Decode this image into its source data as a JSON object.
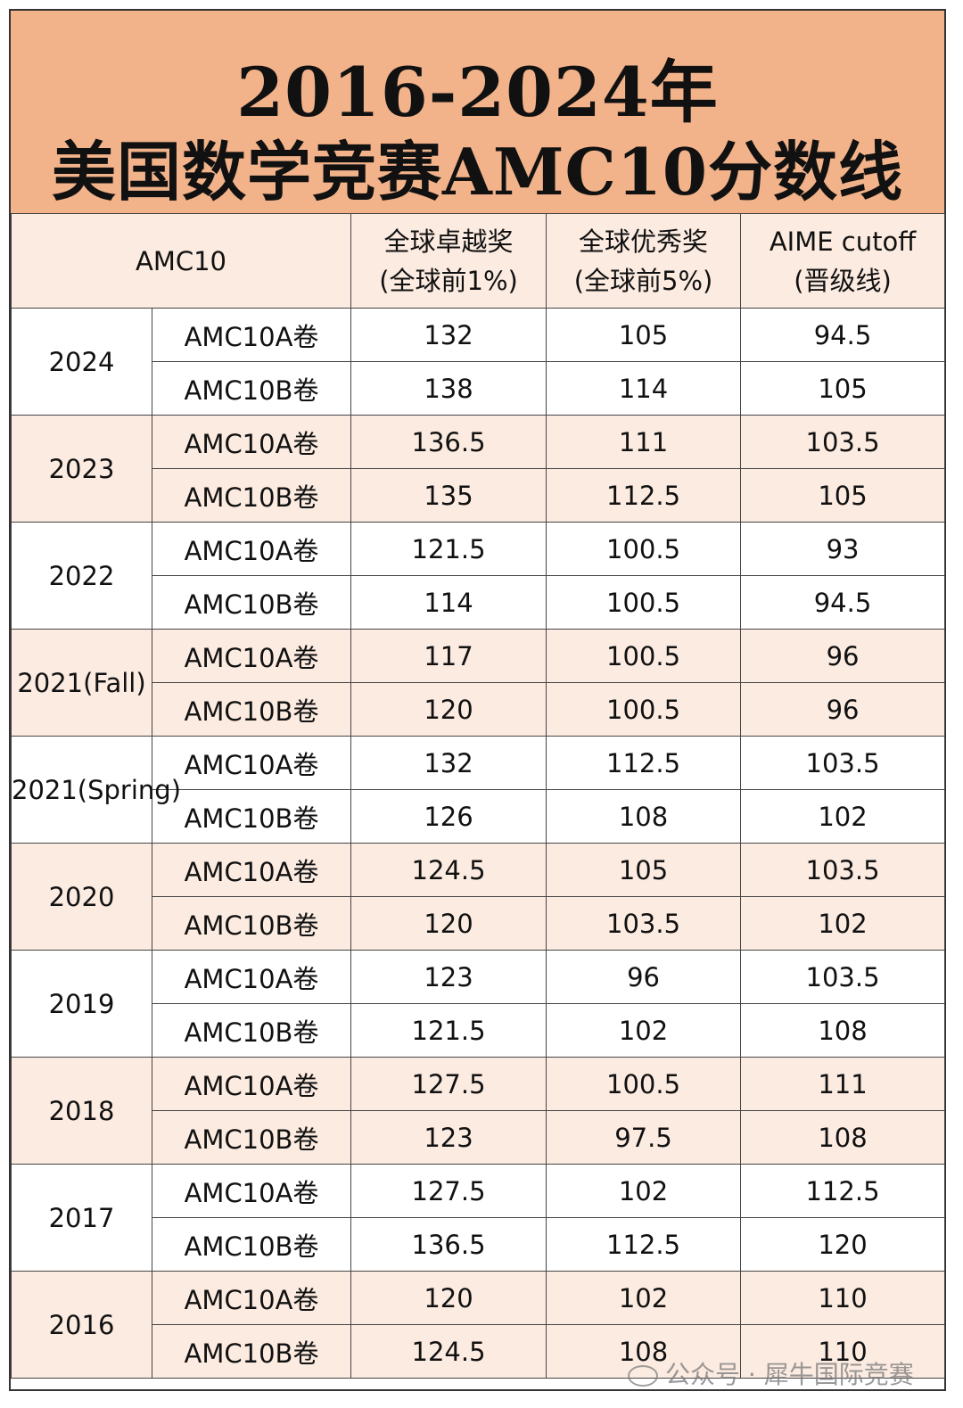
{
  "title": {
    "line1": "2016-2024年",
    "line2": "美国数学竞赛AMC10分数线"
  },
  "table": {
    "headers": {
      "col0": "AMC10",
      "col1_l1": "全球卓越奖",
      "col1_l2": "(全球前1%)",
      "col2_l1": "全球优秀奖",
      "col2_l2": "(全球前5%)",
      "col3_l1": "AIME cutoff",
      "col3_l2": "(晋级线)"
    },
    "years": [
      {
        "year": "2024",
        "rows": [
          {
            "exam": "AMC10A卷",
            "distinction": "132",
            "honor": "105",
            "aime": "94.5"
          },
          {
            "exam": "AMC10B卷",
            "distinction": "138",
            "honor": "114",
            "aime": "105"
          }
        ]
      },
      {
        "year": "2023",
        "rows": [
          {
            "exam": "AMC10A卷",
            "distinction": "136.5",
            "honor": "111",
            "aime": "103.5"
          },
          {
            "exam": "AMC10B卷",
            "distinction": "135",
            "honor": "112.5",
            "aime": "105"
          }
        ]
      },
      {
        "year": "2022",
        "rows": [
          {
            "exam": "AMC10A卷",
            "distinction": "121.5",
            "honor": "100.5",
            "aime": "93"
          },
          {
            "exam": "AMC10B卷",
            "distinction": "114",
            "honor": "100.5",
            "aime": "94.5"
          }
        ]
      },
      {
        "year": "2021(Fall)",
        "rows": [
          {
            "exam": "AMC10A卷",
            "distinction": "117",
            "honor": "100.5",
            "aime": "96"
          },
          {
            "exam": "AMC10B卷",
            "distinction": "120",
            "honor": "100.5",
            "aime": "96"
          }
        ]
      },
      {
        "year": "2021(Spring)",
        "rows": [
          {
            "exam": "AMC10A卷",
            "distinction": "132",
            "honor": "112.5",
            "aime": "103.5"
          },
          {
            "exam": "AMC10B卷",
            "distinction": "126",
            "honor": "108",
            "aime": "102"
          }
        ]
      },
      {
        "year": "2020",
        "rows": [
          {
            "exam": "AMC10A卷",
            "distinction": "124.5",
            "honor": "105",
            "aime": "103.5"
          },
          {
            "exam": "AMC10B卷",
            "distinction": "120",
            "honor": "103.5",
            "aime": "102"
          }
        ]
      },
      {
        "year": "2019",
        "rows": [
          {
            "exam": "AMC10A卷",
            "distinction": "123",
            "honor": "96",
            "aime": "103.5"
          },
          {
            "exam": "AMC10B卷",
            "distinction": "121.5",
            "honor": "102",
            "aime": "108"
          }
        ]
      },
      {
        "year": "2018",
        "rows": [
          {
            "exam": "AMC10A卷",
            "distinction": "127.5",
            "honor": "100.5",
            "aime": "111"
          },
          {
            "exam": "AMC10B卷",
            "distinction": "123",
            "honor": "97.5",
            "aime": "108"
          }
        ]
      },
      {
        "year": "2017",
        "rows": [
          {
            "exam": "AMC10A卷",
            "distinction": "127.5",
            "honor": "102",
            "aime": "112.5"
          },
          {
            "exam": "AMC10B卷",
            "distinction": "136.5",
            "honor": "112.5",
            "aime": "120"
          }
        ]
      },
      {
        "year": "2016",
        "rows": [
          {
            "exam": "AMC10A卷",
            "distinction": "120",
            "honor": "102",
            "aime": "110"
          },
          {
            "exam": "AMC10B卷",
            "distinction": "124.5",
            "honor": "108",
            "aime": "110"
          }
        ]
      }
    ]
  },
  "watermark": "公众号 · 犀牛国际竞赛",
  "colors": {
    "title_bg": "#f2b28a",
    "shade_row": "#fcebe1",
    "border": "#444444"
  }
}
